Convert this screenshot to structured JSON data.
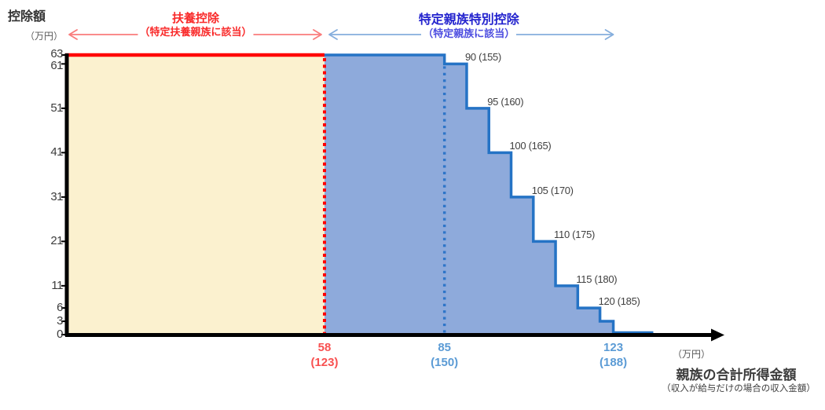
{
  "y_axis": {
    "title": "控除額",
    "unit": "（万円）",
    "ticks": [
      63,
      61,
      51,
      41,
      31,
      21,
      11,
      6,
      3,
      0
    ]
  },
  "x_axis": {
    "unit": "（万円）",
    "title": "親族の合計所得金額",
    "note": "（収入が給与だけの場合の収入金額）",
    "ticks": [
      {
        "x": 58,
        "line1": "58",
        "line2": "(123)",
        "color_key": "red_tick"
      },
      {
        "x": 85,
        "line1": "85",
        "line2": "(150)",
        "color_key": "blue_tick"
      },
      {
        "x": 123,
        "line1": "123",
        "line2": "(188)",
        "color_key": "blue_tick"
      }
    ]
  },
  "headers": {
    "red": {
      "title": "扶養控除",
      "subtitle": "（特定扶養親族に該当）",
      "from_x": 0,
      "to_x": 58
    },
    "blue": {
      "title": "特定親族特別控除",
      "subtitle": "（特定親族に該当）",
      "from_x": 58,
      "to_x": 123
    }
  },
  "chart_data": {
    "type": "area",
    "title": "",
    "xlabel": "親族の合計所得金額（万円）",
    "ylabel": "控除額（万円）",
    "xlim": [
      0,
      148
    ],
    "ylim": [
      0,
      63
    ],
    "grid": false,
    "region_split_x": 58,
    "steps": [
      {
        "from": 0,
        "to": 58,
        "value": 63,
        "region": "dependent_deduction"
      },
      {
        "from": 58,
        "to": 85,
        "value": 63,
        "region": "special_relative"
      },
      {
        "from": 85,
        "to": 90,
        "value": 61,
        "region": "special_relative"
      },
      {
        "from": 90,
        "to": 95,
        "value": 51,
        "region": "special_relative"
      },
      {
        "from": 95,
        "to": 100,
        "value": 41,
        "region": "special_relative"
      },
      {
        "from": 100,
        "to": 105,
        "value": 31,
        "region": "special_relative"
      },
      {
        "from": 105,
        "to": 110,
        "value": 21,
        "region": "special_relative"
      },
      {
        "from": 110,
        "to": 115,
        "value": 11,
        "region": "special_relative"
      },
      {
        "from": 115,
        "to": 120,
        "value": 6,
        "region": "special_relative"
      },
      {
        "from": 120,
        "to": 123,
        "value": 3,
        "region": "special_relative"
      },
      {
        "from": 123,
        "to": 132,
        "value": 0,
        "region": "special_relative"
      }
    ],
    "dotted_lines": [
      {
        "x": 58,
        "color_key": "red"
      },
      {
        "x": 85,
        "color_key": "dotted_blue"
      }
    ],
    "annotations": [
      {
        "x": 90,
        "anchor_value": 61,
        "label": "90 (155)"
      },
      {
        "x": 95,
        "anchor_value": 51,
        "label": "95 (160)"
      },
      {
        "x": 100,
        "anchor_value": 41,
        "label": "100 (165)"
      },
      {
        "x": 105,
        "anchor_value": 31,
        "label": "105 (170)"
      },
      {
        "x": 110,
        "anchor_value": 21,
        "label": "110 (175)"
      },
      {
        "x": 115,
        "anchor_value": 11,
        "label": "115 (180)"
      },
      {
        "x": 120,
        "anchor_value": 6,
        "label": "120 (185)"
      }
    ]
  },
  "colors": {
    "cream_fill": "#FBF1CF",
    "blue_fill": "#8EAADB",
    "blue_border": "#2573C5",
    "red": "#FF0000",
    "red_text": "#F92B2B",
    "red_tick": "#F85050",
    "arrow_red": "#F97C7C",
    "blue_title": "#2323CE",
    "blue_subtitle": "#4D4DE0",
    "arrow_blue": "#85AEDD",
    "blue_tick": "#5B9BD5",
    "dotted_blue": "#2E75C8",
    "axis": "#000000",
    "text_dark": "#404040"
  }
}
